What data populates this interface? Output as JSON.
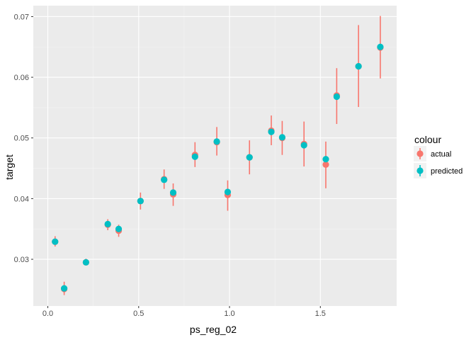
{
  "chart_data": {
    "type": "scatter",
    "title": "",
    "xlabel": "ps_reg_02",
    "ylabel": "target",
    "xlim": [
      -0.08,
      1.92
    ],
    "ylim": [
      0.0223,
      0.0718
    ],
    "x_ticks": [
      0.0,
      0.5,
      1.0,
      1.5
    ],
    "x_tick_labels": [
      "0.0",
      "0.5",
      "1.0",
      "1.5"
    ],
    "y_ticks": [
      0.03,
      0.04,
      0.05,
      0.06,
      0.07
    ],
    "y_tick_labels": [
      "0.03",
      "0.04",
      "0.05",
      "0.06",
      "0.07"
    ],
    "grid": true,
    "legend": {
      "title": "colour",
      "position": "right",
      "entries": [
        "actual",
        "predicted"
      ]
    },
    "colors": {
      "actual": "#F8766D",
      "predicted": "#00BFC4",
      "panel": "#EBEBEB",
      "grid_major": "#FFFFFF",
      "grid_minor": "#F5F5F5"
    },
    "series": [
      {
        "name": "actual",
        "x": [
          0.04,
          0.09,
          0.21,
          0.33,
          0.39,
          0.51,
          0.64,
          0.69,
          0.81,
          0.93,
          0.99,
          1.11,
          1.23,
          1.29,
          1.41,
          1.53,
          1.59,
          1.71,
          1.83
        ],
        "y": [
          0.0329,
          0.0251,
          0.0295,
          0.0357,
          0.0347,
          0.0396,
          0.0432,
          0.0407,
          0.0472,
          0.0493,
          0.0406,
          0.0468,
          0.0512,
          0.05,
          0.049,
          0.0456,
          0.057,
          0.0618,
          0.0649
        ],
        "ymin": [
          0.0321,
          0.0241,
          0.029,
          0.0348,
          0.0337,
          0.0382,
          0.0416,
          0.0388,
          0.0452,
          0.0471,
          0.038,
          0.044,
          0.0488,
          0.0472,
          0.0453,
          0.0417,
          0.0523,
          0.0551,
          0.0598
        ],
        "ymax": [
          0.0338,
          0.0263,
          0.0301,
          0.0366,
          0.0357,
          0.041,
          0.0448,
          0.0425,
          0.0493,
          0.0518,
          0.043,
          0.0496,
          0.0537,
          0.0528,
          0.0527,
          0.0494,
          0.0615,
          0.0686,
          0.0701
        ]
      },
      {
        "name": "predicted",
        "x": [
          0.04,
          0.09,
          0.21,
          0.33,
          0.39,
          0.51,
          0.64,
          0.69,
          0.81,
          0.93,
          0.99,
          1.11,
          1.23,
          1.29,
          1.41,
          1.53,
          1.59,
          1.71,
          1.83
        ],
        "y": [
          0.0329,
          0.0252,
          0.0295,
          0.0358,
          0.035,
          0.0396,
          0.0431,
          0.041,
          0.0469,
          0.0494,
          0.0411,
          0.0468,
          0.051,
          0.0501,
          0.0488,
          0.0465,
          0.0568,
          0.0618,
          0.065
        ]
      }
    ]
  }
}
